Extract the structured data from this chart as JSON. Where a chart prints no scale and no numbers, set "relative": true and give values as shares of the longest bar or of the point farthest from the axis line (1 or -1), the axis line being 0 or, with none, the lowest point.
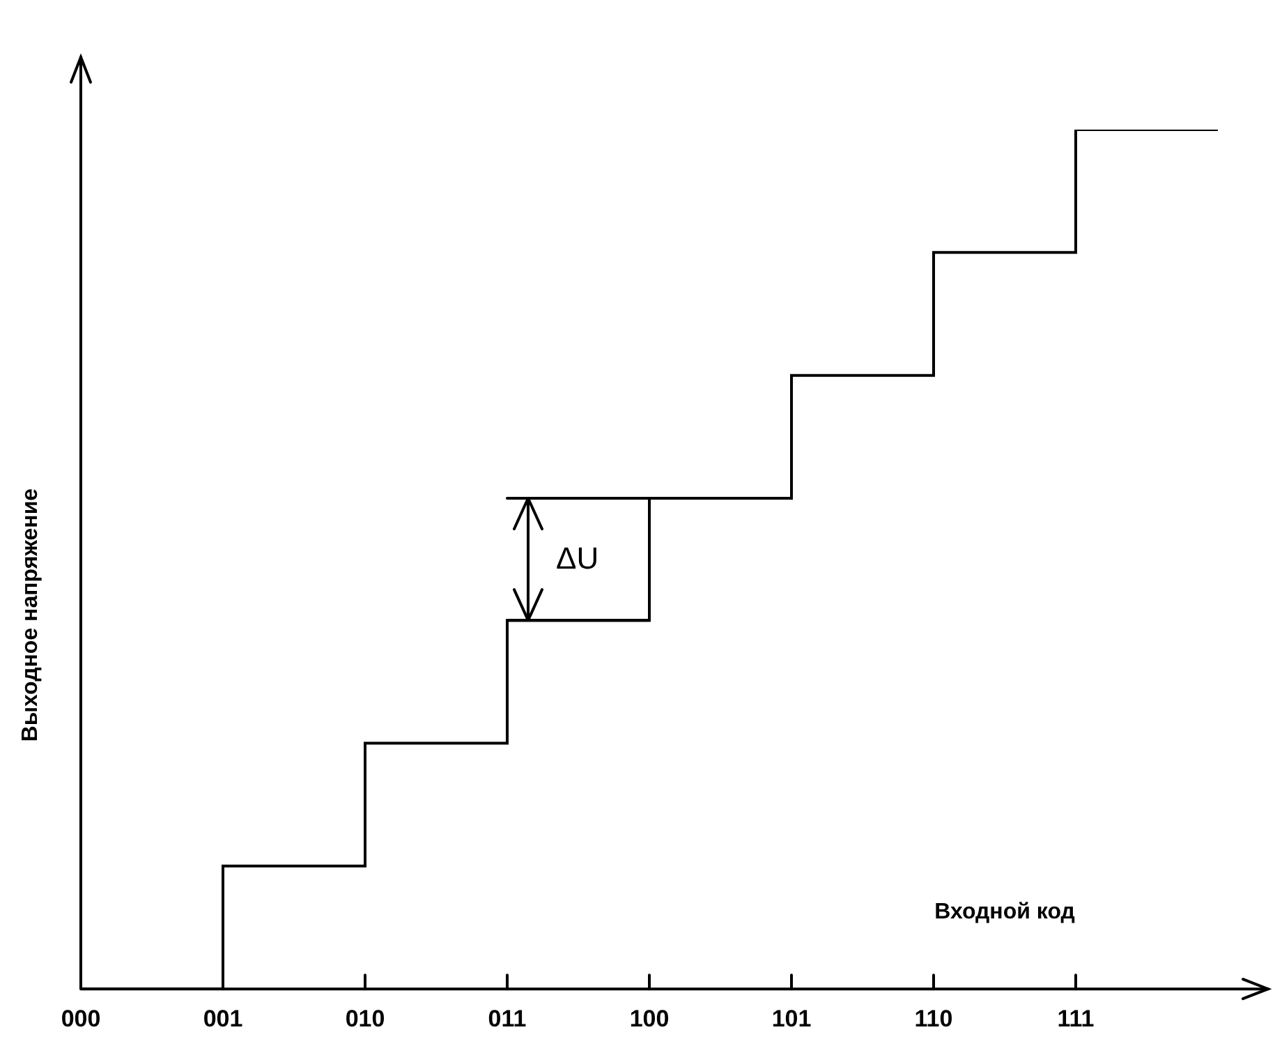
{
  "chart_data": {
    "type": "step",
    "relative": true,
    "xlabel": "Входной код",
    "ylabel": "Выходное напряжение",
    "categories": [
      "000",
      "001",
      "010",
      "011",
      "100",
      "101",
      "110",
      "111",
      null
    ],
    "values": [
      0,
      0.143,
      0.286,
      0.429,
      0.571,
      0.714,
      0.857,
      1,
      1
    ],
    "color": "#000000",
    "grid": false,
    "legend": false,
    "annotations": [
      "ΔU"
    ]
  }
}
